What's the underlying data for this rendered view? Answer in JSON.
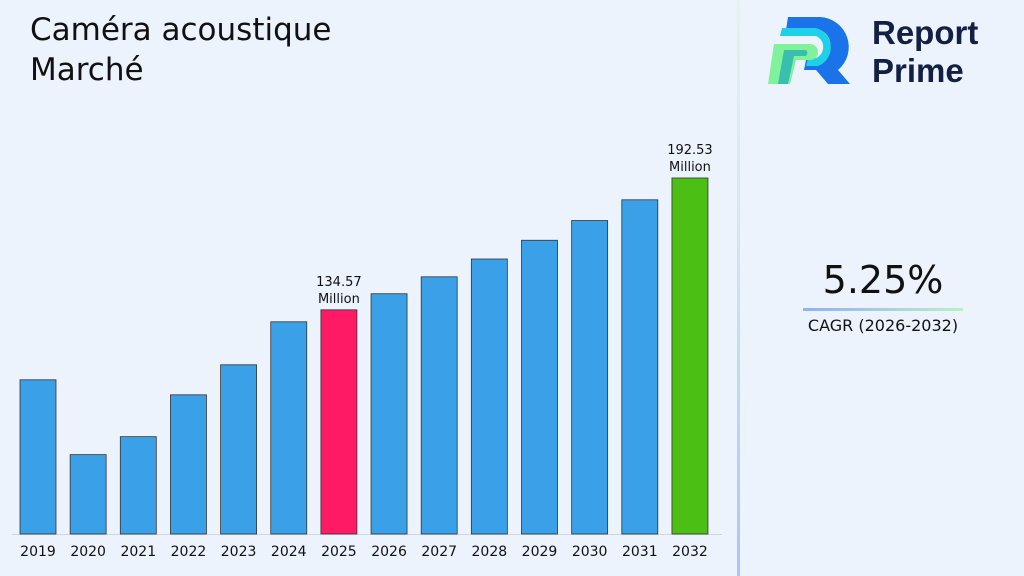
{
  "title": "Caméra acoustique Marché",
  "brand": {
    "name_line1": "Report",
    "name_line2": "Prime"
  },
  "cagr": {
    "value": "5.25%",
    "label": "CAGR (2026-2032)"
  },
  "colors": {
    "bar": "#3aa0e8",
    "highlight_2025": "#ff1a66",
    "highlight_2032": "#4cbf14"
  },
  "chart_data": {
    "type": "bar",
    "title": "Caméra acoustique Marché",
    "categories": [
      "2019",
      "2020",
      "2021",
      "2022",
      "2023",
      "2024",
      "2025",
      "2026",
      "2027",
      "2028",
      "2029",
      "2030",
      "2031",
      "2032"
    ],
    "values": [
      103.8,
      70.9,
      78.8,
      97.2,
      110.4,
      129.3,
      134.57,
      141.64,
      149.08,
      156.91,
      165.15,
      173.82,
      182.94,
      192.53
    ],
    "unit": "Million",
    "data_labels": {
      "2025": [
        "134.57",
        "Million"
      ],
      "2032": [
        "192.53",
        "Million"
      ]
    },
    "ylim": [
      36,
      200
    ],
    "grid": false,
    "legend": "none"
  }
}
